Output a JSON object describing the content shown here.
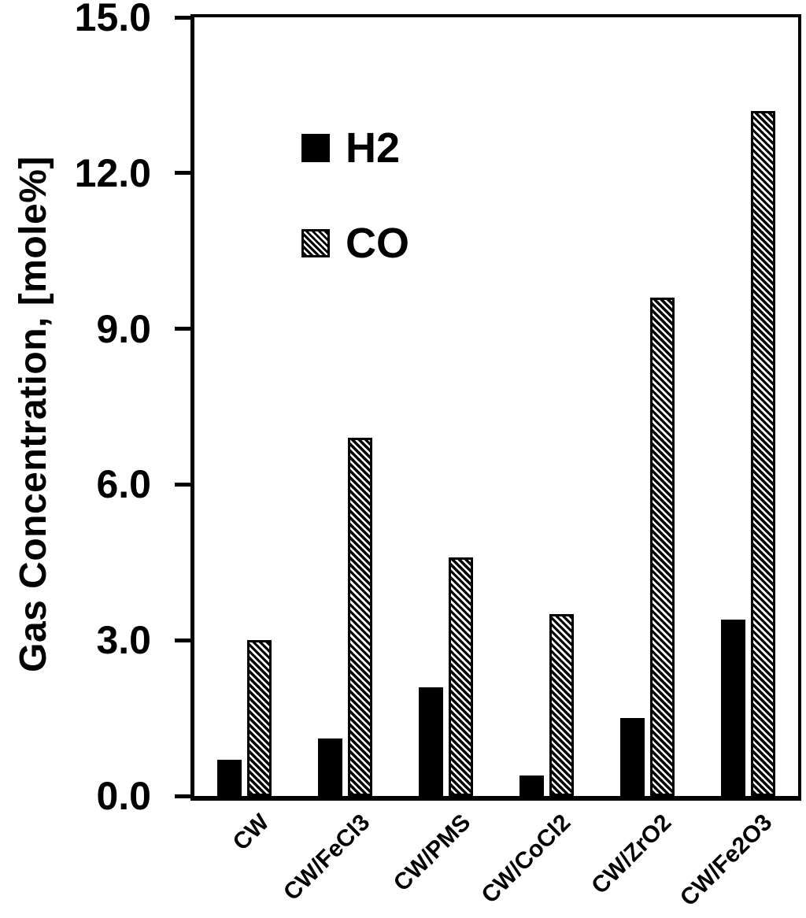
{
  "chart_data": {
    "type": "bar",
    "title": "",
    "xlabel": "",
    "ylabel": "Gas Concentration, [mole%]",
    "ylim": [
      0,
      15
    ],
    "ytick_labels": [
      "15.0",
      "12.0",
      "9.0",
      "6.0",
      "3.0",
      "0.0"
    ],
    "ytick_values": [
      15,
      12,
      9,
      6,
      3,
      0
    ],
    "grid": false,
    "legend_position": "upper-left-inside",
    "categories": [
      "CW",
      "CW/FeCl3",
      "CW/PMS",
      "CW/CoCl2",
      "CW/ZrO2",
      "CW/Fe2O3"
    ],
    "series": [
      {
        "name": "H2",
        "style": "solid-black-square",
        "values": [
          0.7,
          1.1,
          2.1,
          0.4,
          1.5,
          3.4
        ]
      },
      {
        "name": "CO",
        "style": "diagonal-hatch-square",
        "values": [
          3.0,
          6.9,
          4.6,
          3.5,
          9.6,
          13.2
        ]
      }
    ],
    "colors": {
      "foreground": "#000000",
      "background": "#ffffff"
    }
  }
}
